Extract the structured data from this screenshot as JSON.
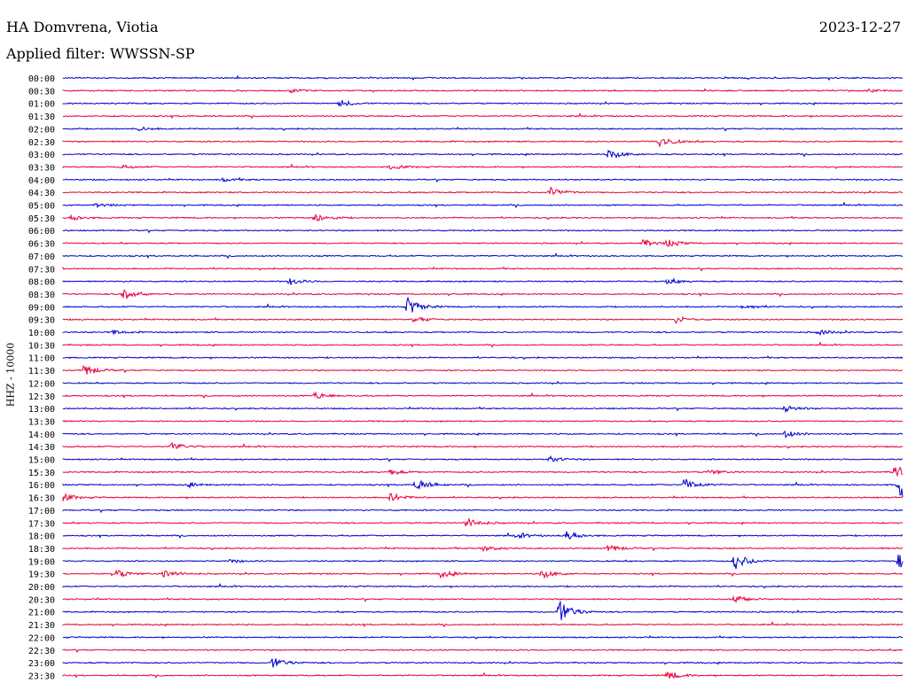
{
  "header": {
    "station": "HA Domvrena, Viotia",
    "date": "2023-12-27",
    "filter": "Applied filter: WWSSN-SP"
  },
  "chart_data": {
    "type": "line",
    "title": "HA Domvrena, Viotia",
    "date": "2023-12-27",
    "filter": "WWSSN-SP",
    "ylabel": "HHZ - 10000",
    "row_labels": [
      "00:00",
      "00:30",
      "01:00",
      "01:30",
      "02:00",
      "02:30",
      "03:00",
      "03:30",
      "04:00",
      "04:30",
      "05:00",
      "05:30",
      "06:00",
      "06:30",
      "07:00",
      "07:30",
      "08:00",
      "08:30",
      "09:00",
      "09:30",
      "10:00",
      "10:30",
      "11:00",
      "11:30",
      "12:00",
      "12:30",
      "13:00",
      "13:30",
      "14:00",
      "14:30",
      "15:00",
      "15:30",
      "16:00",
      "16:30",
      "17:00",
      "17:30",
      "18:00",
      "18:30",
      "19:00",
      "19:30",
      "20:00",
      "20:30",
      "21:00",
      "21:30",
      "22:00",
      "22:30",
      "23:00",
      "23:30"
    ],
    "row_minutes": 30,
    "colors": [
      "#0000cc",
      "#e8003c"
    ],
    "events": [
      {
        "row": 1,
        "x": 0.27,
        "amp": 2
      },
      {
        "row": 1,
        "x": 0.96,
        "amp": 2
      },
      {
        "row": 2,
        "x": 0.33,
        "amp": 4
      },
      {
        "row": 4,
        "x": 0.09,
        "amp": 2
      },
      {
        "row": 5,
        "x": 0.71,
        "amp": 7
      },
      {
        "row": 6,
        "x": 0.65,
        "amp": 6
      },
      {
        "row": 7,
        "x": 0.39,
        "amp": 3
      },
      {
        "row": 7,
        "x": 0.07,
        "amp": 2
      },
      {
        "row": 8,
        "x": 0.19,
        "amp": 2
      },
      {
        "row": 9,
        "x": 0.58,
        "amp": 6
      },
      {
        "row": 10,
        "x": 0.04,
        "amp": 2
      },
      {
        "row": 11,
        "x": 0.3,
        "amp": 5
      },
      {
        "row": 11,
        "x": 0.01,
        "amp": 3
      },
      {
        "row": 13,
        "x": 0.69,
        "amp": 4
      },
      {
        "row": 13,
        "x": 0.72,
        "amp": 4
      },
      {
        "row": 16,
        "x": 0.27,
        "amp": 4
      },
      {
        "row": 16,
        "x": 0.72,
        "amp": 3
      },
      {
        "row": 17,
        "x": 0.07,
        "amp": 8
      },
      {
        "row": 18,
        "x": 0.41,
        "amp": 10
      },
      {
        "row": 18,
        "x": 0.81,
        "amp": 3
      },
      {
        "row": 19,
        "x": 0.42,
        "amp": 3
      },
      {
        "row": 19,
        "x": 0.73,
        "amp": 4
      },
      {
        "row": 20,
        "x": 0.06,
        "amp": 2
      },
      {
        "row": 20,
        "x": 0.9,
        "amp": 3
      },
      {
        "row": 23,
        "x": 0.025,
        "amp": 7
      },
      {
        "row": 25,
        "x": 0.3,
        "amp": 4
      },
      {
        "row": 26,
        "x": 0.86,
        "amp": 4
      },
      {
        "row": 28,
        "x": 0.86,
        "amp": 4
      },
      {
        "row": 29,
        "x": 0.13,
        "amp": 5
      },
      {
        "row": 30,
        "x": 0.58,
        "amp": 3
      },
      {
        "row": 31,
        "x": 0.39,
        "amp": 3
      },
      {
        "row": 31,
        "x": 0.77,
        "amp": 3
      },
      {
        "row": 31,
        "x": 0.99,
        "amp": 9
      },
      {
        "row": 32,
        "x": 0.42,
        "amp": 7
      },
      {
        "row": 32,
        "x": 0.74,
        "amp": 8
      },
      {
        "row": 32,
        "x": 0.15,
        "amp": 2
      },
      {
        "row": 32,
        "x": 0.995,
        "amp": 22
      },
      {
        "row": 33,
        "x": 0.39,
        "amp": 5
      },
      {
        "row": 33,
        "x": 0.0,
        "amp": 4
      },
      {
        "row": 35,
        "x": 0.48,
        "amp": 6
      },
      {
        "row": 36,
        "x": 0.6,
        "amp": 5
      },
      {
        "row": 36,
        "x": 0.54,
        "amp": 3
      },
      {
        "row": 37,
        "x": 0.5,
        "amp": 3
      },
      {
        "row": 37,
        "x": 0.65,
        "amp": 4
      },
      {
        "row": 38,
        "x": 0.8,
        "amp": 10
      },
      {
        "row": 38,
        "x": 0.995,
        "amp": 8
      },
      {
        "row": 38,
        "x": 0.2,
        "amp": 2
      },
      {
        "row": 39,
        "x": 0.06,
        "amp": 6
      },
      {
        "row": 39,
        "x": 0.57,
        "amp": 5
      },
      {
        "row": 39,
        "x": 0.45,
        "amp": 4
      },
      {
        "row": 39,
        "x": 0.12,
        "amp": 5
      },
      {
        "row": 41,
        "x": 0.8,
        "amp": 5
      },
      {
        "row": 42,
        "x": 0.59,
        "amp": 14
      },
      {
        "row": 46,
        "x": 0.25,
        "amp": 6
      },
      {
        "row": 47,
        "x": 0.72,
        "amp": 5
      }
    ]
  }
}
